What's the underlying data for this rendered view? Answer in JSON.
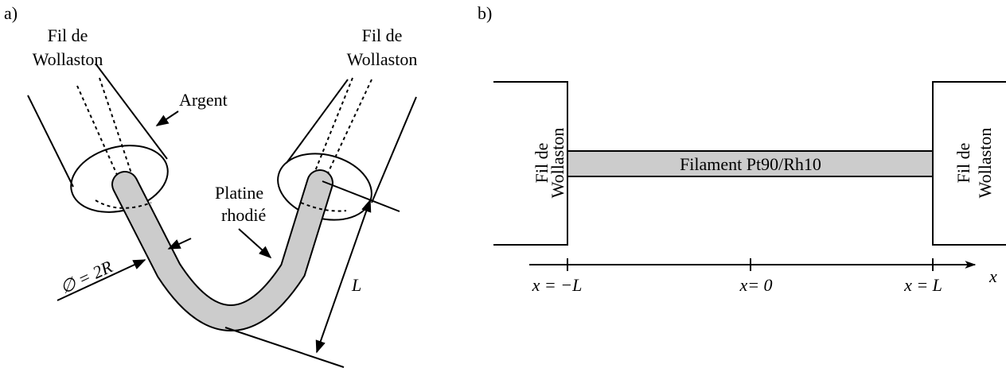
{
  "panel_a": {
    "label": "a)",
    "wire_left": [
      "Fil de",
      "Wollaston"
    ],
    "wire_right": [
      "Fil de",
      "Wollaston"
    ],
    "silver": "Argent",
    "platinum": [
      "Platine",
      "rhodié"
    ],
    "diameter": "∅ = 2R",
    "length": "L"
  },
  "panel_b": {
    "label": "b)",
    "wire_left": [
      "Fil de",
      "Wollaston"
    ],
    "wire_right": [
      "Fil de",
      "Wollaston"
    ],
    "filament": "Filament Pt90/Rh10",
    "axis": {
      "ticks": [
        "x = −L",
        "x= 0",
        "x = L"
      ],
      "label": "x"
    }
  }
}
